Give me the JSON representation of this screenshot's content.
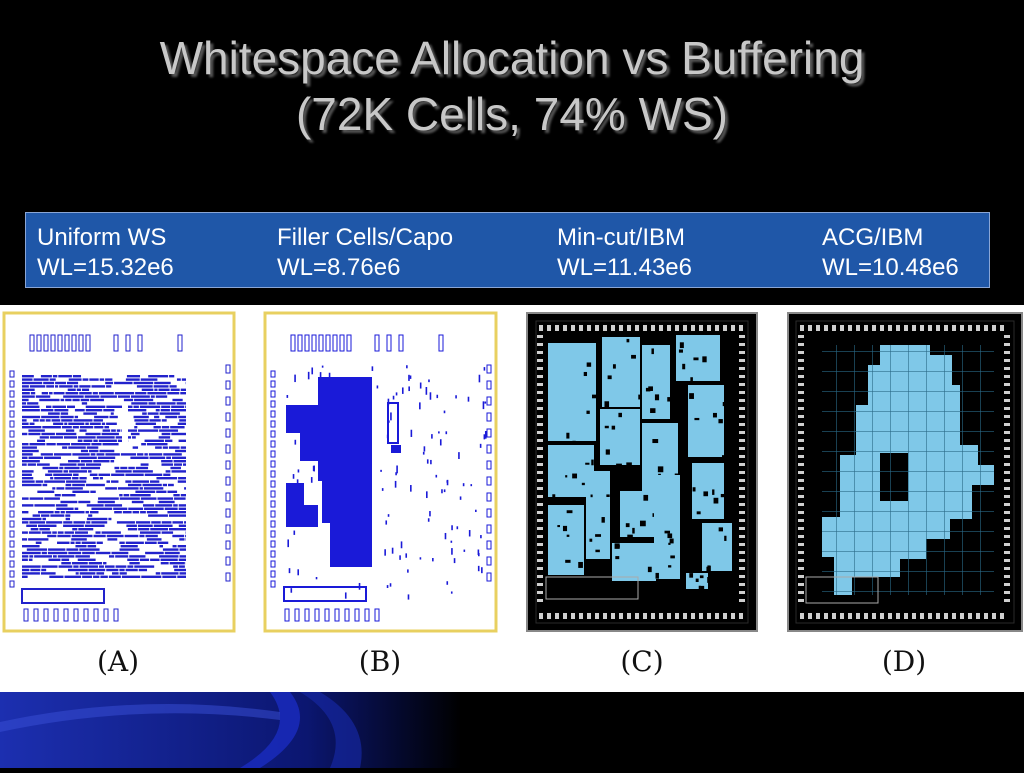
{
  "slide": {
    "title_line1": "Whitespace Allocation vs Buffering",
    "title_line2": "(72K Cells, 74% WS)"
  },
  "methods": [
    {
      "name": "Uniform WS",
      "wl": "WL=15.32e6"
    },
    {
      "name": "Filler Cells/Capo",
      "wl": "WL=8.76e6"
    },
    {
      "name": "Min-cut/IBM",
      "wl": "WL=11.43e6"
    },
    {
      "name": "ACG/IBM",
      "wl": "WL=10.48e6"
    }
  ],
  "panels": [
    {
      "letter": "(A)",
      "background": "#ffffff",
      "cell_color": "#2222cc",
      "frame": "#e8d060"
    },
    {
      "letter": "(B)",
      "background": "#ffffff",
      "cell_color": "#1a1ad8",
      "frame": "#e8d060"
    },
    {
      "letter": "(C)",
      "background": "#000000",
      "cell_color": "#7fc8e8",
      "frame": "#ffffff"
    },
    {
      "letter": "(D)",
      "background": "#000000",
      "cell_color": "#7fc8e8",
      "frame": "#ffffff"
    }
  ],
  "colors": {
    "slide_background": "#000000",
    "title_text": "#c8c8c8",
    "label_bar": "#1f57a8",
    "accent_blue": "#1c2fb0"
  }
}
